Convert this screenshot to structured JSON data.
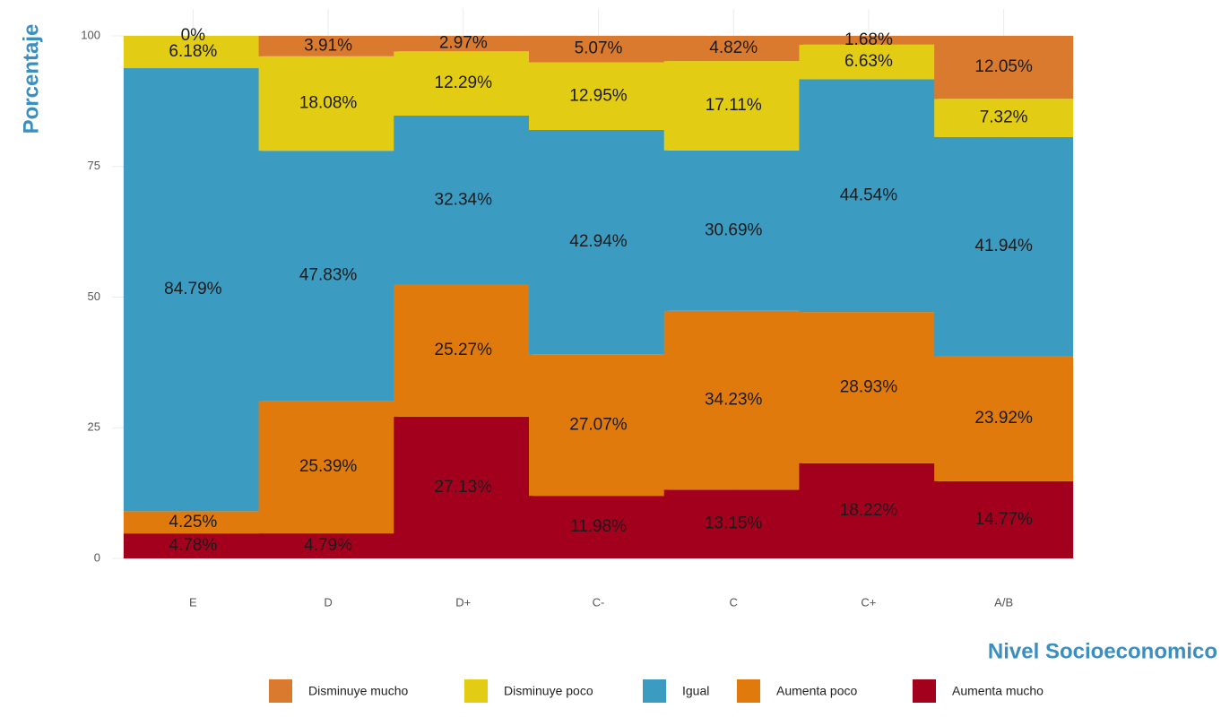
{
  "chart_data": {
    "type": "stacked_bar",
    "ylabel": "Porcentaje",
    "xlabel": "Nivel Socioeconomico",
    "categories": [
      "E",
      "D",
      "D+",
      "C-",
      "C",
      "C+",
      "A/B"
    ],
    "ylim": [
      0,
      100
    ],
    "yticks": [
      0,
      25,
      50,
      75,
      100
    ],
    "grid": true,
    "legend": "bottom",
    "series": [
      {
        "name": "Disminuye mucho",
        "color": "#da7a2e",
        "values": [
          0,
          3.91,
          2.97,
          5.07,
          4.82,
          1.68,
          12.05
        ],
        "value_labels": [
          "0%",
          "3.91%",
          "2.97%",
          "5.07%",
          "4.82%",
          "1.68%",
          "12.05%"
        ]
      },
      {
        "name": "Disminuye poco",
        "color": "#e3cc14",
        "values": [
          6.18,
          18.08,
          12.29,
          12.95,
          17.11,
          6.63,
          7.32
        ],
        "value_labels": [
          "6.18%",
          "18.08%",
          "12.29%",
          "12.95%",
          "17.11%",
          "6.63%",
          "7.32%"
        ]
      },
      {
        "name": "Igual",
        "color": "#3b9bc1",
        "values": [
          84.79,
          47.83,
          32.34,
          42.94,
          30.69,
          44.54,
          41.94
        ],
        "value_labels": [
          "84.79%",
          "47.83%",
          "32.34%",
          "42.94%",
          "30.69%",
          "44.54%",
          "41.94%"
        ]
      },
      {
        "name": "Aumenta poco",
        "color": "#e07a0c",
        "values": [
          4.25,
          25.39,
          25.27,
          27.07,
          34.23,
          28.93,
          23.92
        ],
        "value_labels": [
          "4.25%",
          "25.39%",
          "25.27%",
          "27.07%",
          "34.23%",
          "28.93%",
          "23.92%"
        ]
      },
      {
        "name": "Aumenta mucho",
        "color": "#a3001e",
        "values": [
          4.78,
          4.79,
          27.13,
          11.98,
          13.15,
          18.22,
          14.77
        ],
        "value_labels": [
          "4.78%",
          "4.79%",
          "27.13%",
          "11.98%",
          "13.15%",
          "18.22%",
          "14.77%"
        ]
      }
    ]
  }
}
